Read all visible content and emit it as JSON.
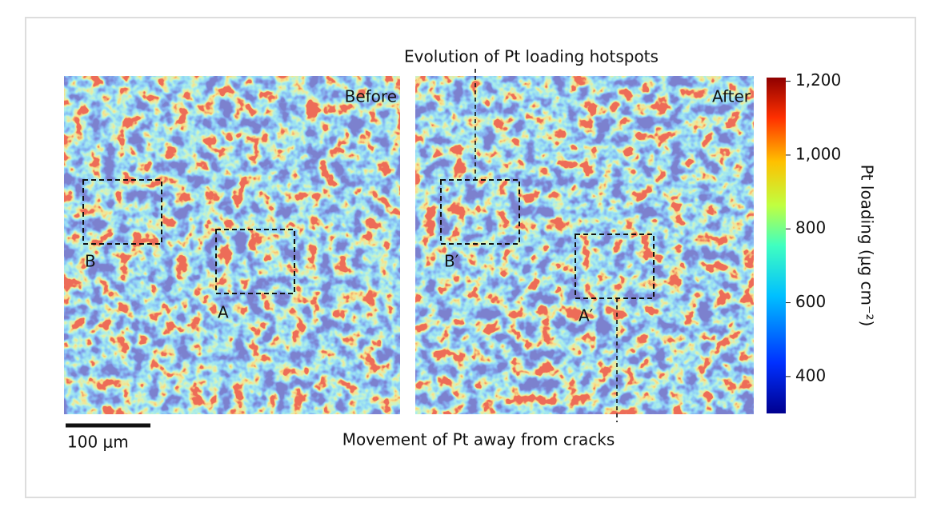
{
  "annotations": {
    "top": "Evolution of Pt loading hotspots",
    "bottom": "Movement of Pt away from cracks"
  },
  "panels": [
    {
      "label": "Before",
      "regions": [
        "B",
        "A"
      ]
    },
    {
      "label": "After",
      "regions": [
        "B′",
        "A′"
      ]
    }
  ],
  "scale_bar": "100 μm",
  "colorbar": {
    "label": "Pt loading (μg cm⁻²)",
    "lim": [
      300,
      1210
    ],
    "ticks": [
      {
        "value": 1200,
        "label": "1,200"
      },
      {
        "value": 1000,
        "label": "1,000"
      },
      800,
      600,
      400
    ]
  }
}
